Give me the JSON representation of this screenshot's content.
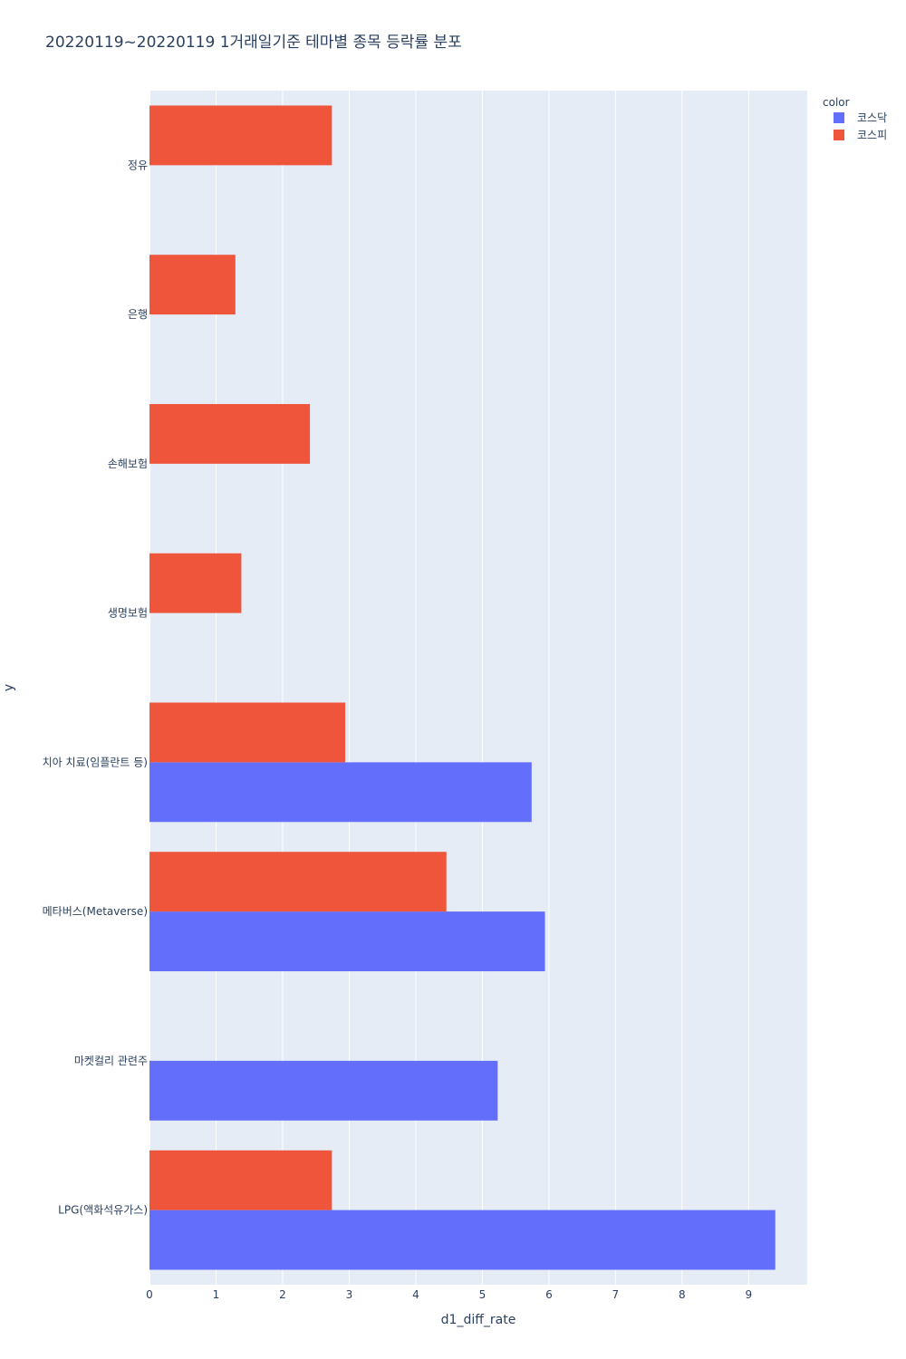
{
  "chart_data": {
    "type": "bar",
    "orientation": "horizontal",
    "barmode": "group",
    "title": "20220119~20220119 1거래일기준 테마별 종목 등락률 분포",
    "xlabel": "d1_diff_rate",
    "ylabel": "y",
    "xlim": [
      0,
      9.88
    ],
    "x_ticks": [
      0,
      1,
      2,
      3,
      4,
      5,
      6,
      7,
      8,
      9
    ],
    "grid": true,
    "legend": {
      "title": "color",
      "position": "top-right"
    },
    "categories": [
      "정유",
      "은행",
      "손해보험",
      "생명보험",
      "치아 치료(임플란트 등)",
      "메타버스(Metaverse)",
      "마켓컬리 관련주",
      "LPG(액화석유가스)"
    ],
    "series": [
      {
        "name": "코스닥",
        "color": "#636efa",
        "values": [
          null,
          null,
          null,
          null,
          5.74,
          5.94,
          5.23,
          9.4
        ]
      },
      {
        "name": "코스피",
        "color": "#ef553b",
        "values": [
          2.74,
          1.29,
          2.41,
          1.38,
          2.94,
          4.46,
          null,
          2.74
        ]
      }
    ]
  }
}
